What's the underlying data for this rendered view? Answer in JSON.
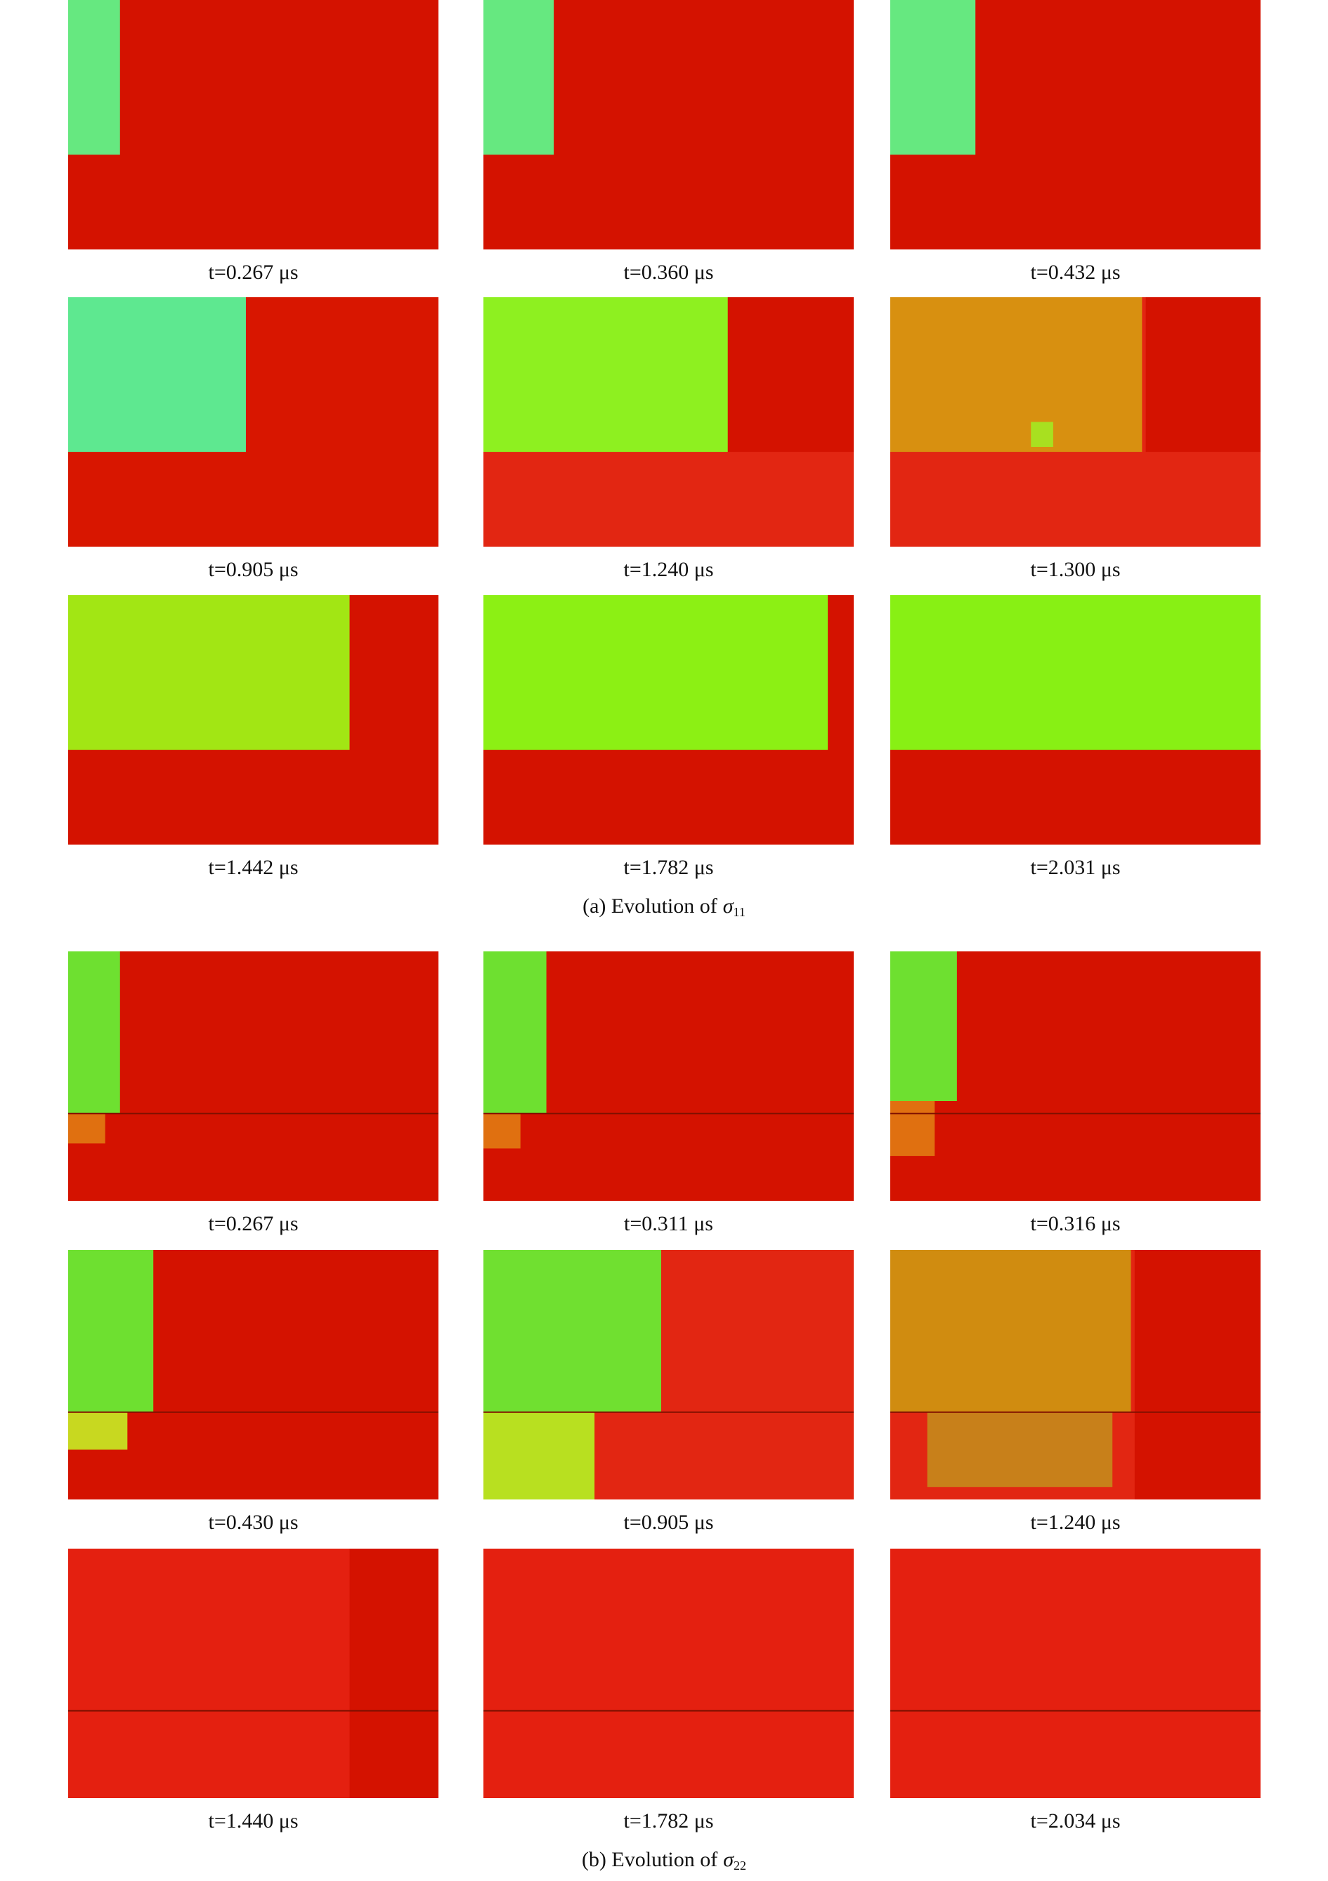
{
  "figures": [
    {
      "panels": [
        {
          "label": "t=0.267 μs"
        },
        {
          "label": "t=0.360 μs"
        },
        {
          "label": "t=0.432 μs"
        },
        {
          "label": "t=0.905 μs"
        },
        {
          "label": "t=1.240 μs"
        },
        {
          "label": "t=1.300 μs"
        },
        {
          "label": "t=1.442 μs"
        },
        {
          "label": "t=1.782 μs"
        },
        {
          "label": "t=2.031 μs"
        }
      ],
      "caption": {
        "prefix": "(a) Evolution of",
        "symbol": "σ",
        "subscript": "11"
      }
    },
    {
      "panels": [
        {
          "label": "t=0.267 μs"
        },
        {
          "label": "t=0.311 μs"
        },
        {
          "label": "t=0.316 μs"
        },
        {
          "label": "t=0.430 μs"
        },
        {
          "label": "t=0.905 μs"
        },
        {
          "label": "t=1.240 μs"
        },
        {
          "label": "t=1.440 μs"
        },
        {
          "label": "t=1.782 μs"
        },
        {
          "label": "t=2.034 μs"
        }
      ],
      "caption": {
        "prefix": "(b) Evolution of",
        "symbol": "σ",
        "subscript": "22"
      }
    }
  ]
}
